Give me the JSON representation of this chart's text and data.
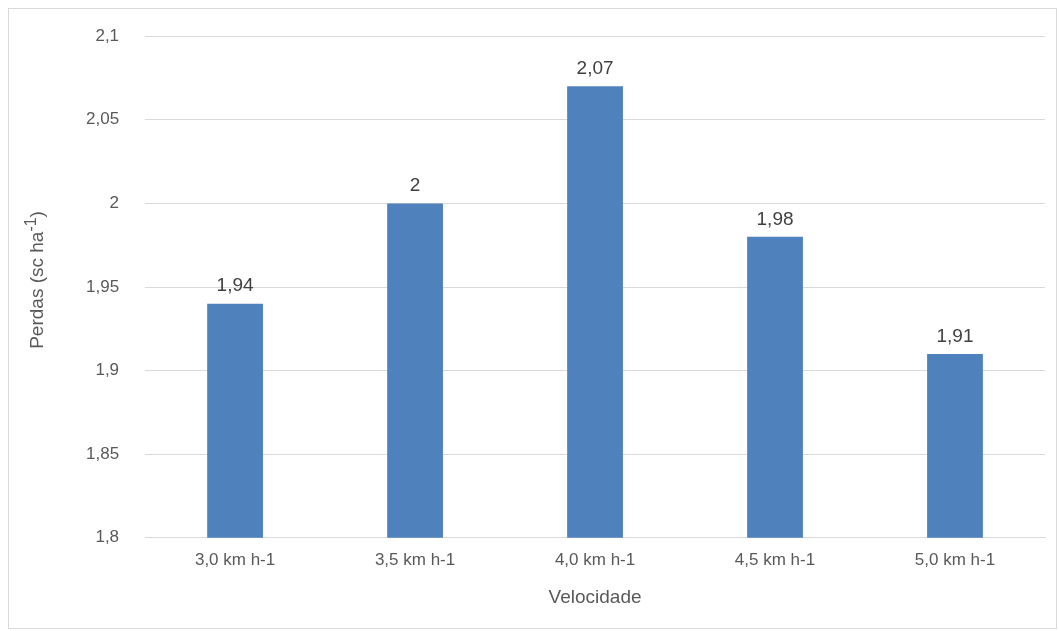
{
  "chart_data": {
    "type": "bar",
    "xlabel": "Velocidade",
    "ylabel": "Perdas (sc ha$^{-1}$)",
    "categories": [
      "3,0 km h-1",
      "3,5 km h-1",
      "4,0 km h-1",
      "4,5 km h-1",
      "5,0 km h-1"
    ],
    "values": [
      1.94,
      2,
      2.07,
      1.98,
      1.91
    ],
    "value_labels": [
      "1,94",
      "2",
      "2,07",
      "1,98",
      "1,91"
    ],
    "color": "#4f81bd",
    "ylim": [
      1.8,
      2.1
    ],
    "yticks": [
      {
        "value": 1.8,
        "label": "1,8"
      },
      {
        "value": 1.85,
        "label": "1,85"
      },
      {
        "value": 1.9,
        "label": "1,9"
      },
      {
        "value": 1.95,
        "label": "1,95"
      },
      {
        "value": 2,
        "label": "2"
      },
      {
        "value": 2.05,
        "label": "2,05"
      },
      {
        "value": 2.1,
        "label": "2,1"
      }
    ],
    "grid": "y",
    "legend": false
  }
}
